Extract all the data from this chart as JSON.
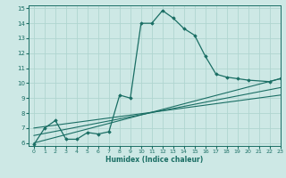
{
  "title": "",
  "xlabel": "Humidex (Indice chaleur)",
  "ylabel": "",
  "xlim": [
    -0.5,
    23
  ],
  "ylim": [
    5.8,
    15.2
  ],
  "xticks": [
    0,
    1,
    2,
    3,
    4,
    5,
    6,
    7,
    8,
    9,
    10,
    11,
    12,
    13,
    14,
    15,
    16,
    17,
    18,
    19,
    20,
    21,
    22,
    23
  ],
  "yticks": [
    6,
    7,
    8,
    9,
    10,
    11,
    12,
    13,
    14,
    15
  ],
  "bg_color": "#cde8e5",
  "grid_color": "#b0d5d0",
  "line_color": "#1a6e64",
  "series": [
    {
      "x": [
        0,
        1,
        2,
        3,
        4,
        5,
        6,
        7,
        8,
        9,
        10,
        11,
        12,
        13,
        14,
        15,
        16,
        17,
        18,
        19,
        20,
        22,
        23
      ],
      "y": [
        5.9,
        7.0,
        7.5,
        6.25,
        6.25,
        6.7,
        6.6,
        6.75,
        9.2,
        9.0,
        14.0,
        14.0,
        14.85,
        14.35,
        13.65,
        13.2,
        11.8,
        10.6,
        10.4,
        10.3,
        10.2,
        10.1,
        10.3
      ],
      "marker": "D",
      "markersize": 1.8,
      "linewidth": 0.9
    },
    {
      "x": [
        0,
        23
      ],
      "y": [
        6.0,
        10.3
      ],
      "marker": null,
      "markersize": 0,
      "linewidth": 0.8
    },
    {
      "x": [
        0,
        23
      ],
      "y": [
        6.5,
        9.7
      ],
      "marker": null,
      "markersize": 0,
      "linewidth": 0.8
    },
    {
      "x": [
        0,
        23
      ],
      "y": [
        7.0,
        9.2
      ],
      "marker": null,
      "markersize": 0,
      "linewidth": 0.8
    }
  ]
}
